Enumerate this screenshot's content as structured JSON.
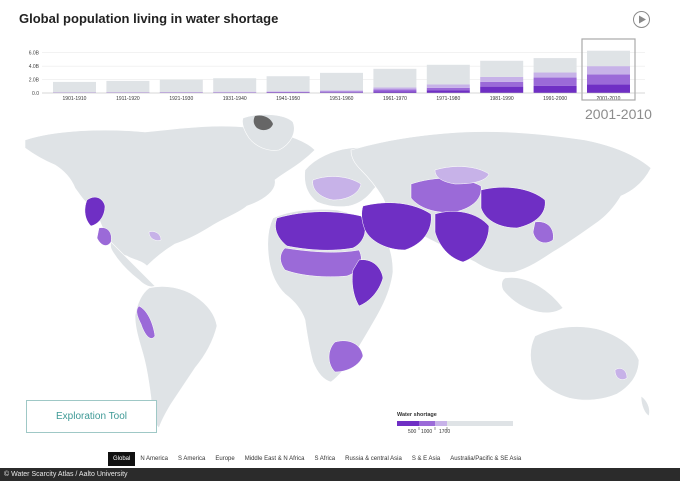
{
  "title": "Global population living in water shortage",
  "icons": {
    "play": "play-icon"
  },
  "colors": {
    "base": "#dfe3e6",
    "level1": "#c7b2e8",
    "level2": "#9b6ad8",
    "level3": "#6f2fc4",
    "selected_frame": "#a9a9a9",
    "accent_teal": "#3e9a96"
  },
  "chart_data": {
    "type": "bar",
    "title": "",
    "xlabel": "",
    "ylabel": "",
    "ylim": [
      0,
      7.0
    ],
    "y_ticks": [
      "0.0",
      "2.0B",
      "4.0B",
      "6.0B"
    ],
    "categories": [
      "1901-1910",
      "1911-1920",
      "1921-1930",
      "1931-1940",
      "1941-1950",
      "1951-1960",
      "1961-1970",
      "1971-1980",
      "1981-1990",
      "1991-2000",
      "2001-2010"
    ],
    "selected": "2001-2010",
    "series": [
      {
        "values": [
          0.02,
          0.02,
          0.03,
          0.05,
          0.08,
          0.12,
          0.25,
          0.42,
          0.95,
          1.05,
          1.3
        ]
      },
      {
        "values": [
          0.04,
          0.05,
          0.05,
          0.06,
          0.08,
          0.12,
          0.3,
          0.35,
          0.7,
          1.25,
          1.45
        ]
      },
      {
        "values": [
          0.06,
          0.06,
          0.07,
          0.08,
          0.1,
          0.15,
          0.28,
          0.5,
          0.75,
          0.75,
          1.25
        ]
      },
      {
        "values": [
          1.53,
          1.67,
          1.85,
          2.01,
          2.24,
          2.61,
          2.77,
          2.93,
          2.4,
          2.15,
          2.3
        ]
      }
    ]
  },
  "year_display": "2001-2010",
  "exploration_tool": {
    "label": "Exploration Tool"
  },
  "legend": {
    "title": "Water shortage",
    "ticks": [
      "500",
      "1000",
      "1700"
    ]
  },
  "regions": {
    "items": [
      {
        "label": "Global",
        "active": true
      },
      {
        "label": "N America"
      },
      {
        "label": "S America"
      },
      {
        "label": "Europe"
      },
      {
        "label": "Middle East & N Africa"
      },
      {
        "label": "S Africa"
      },
      {
        "label": "Russia & central Asia"
      },
      {
        "label": "S & E Asia"
      },
      {
        "label": "Australia/Pacific & SE Asia"
      }
    ]
  },
  "credit": "© Water Scarcity Atlas / Aalto University"
}
